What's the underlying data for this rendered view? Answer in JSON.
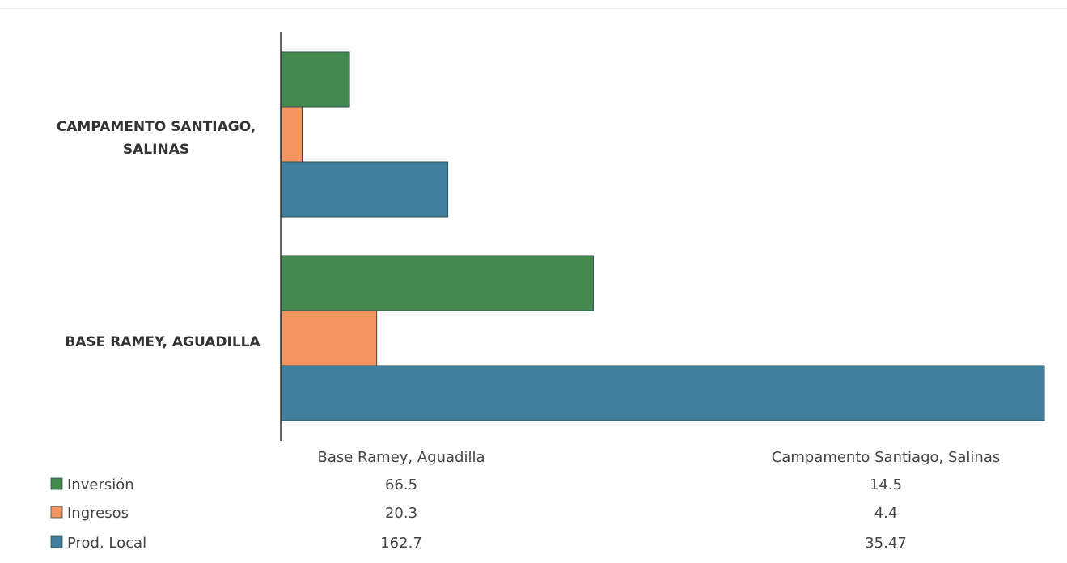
{
  "colors": {
    "inversion": "#44894E",
    "ingresos": "#F49560",
    "prod_local": "#427F9C",
    "bar_stroke": "#2f4f4f"
  },
  "chart_data": {
    "type": "bar",
    "orientation": "horizontal",
    "categories": [
      "Base Ramey, Aguadilla",
      "Campamento Santiago, Salinas"
    ],
    "axis_category_labels": [
      "BASE RAMEY, AGUADILLA",
      "CAMPAMENTO SANTIAGO, SALINAS"
    ],
    "series": [
      {
        "name": "Inversión",
        "values": [
          66.5,
          14.5
        ],
        "color_key": "inversion"
      },
      {
        "name": "Ingresos",
        "values": [
          20.3,
          4.4
        ],
        "color_key": "ingresos"
      },
      {
        "name": "Prod. Local",
        "values": [
          162.7,
          35.47
        ],
        "color_key": "prod_local"
      }
    ],
    "value_text": [
      [
        "66.5",
        "14.5"
      ],
      [
        "20.3",
        "4.4"
      ],
      [
        "162.7",
        "35.47"
      ]
    ],
    "xlim": [
      0,
      162.7
    ],
    "grid": false,
    "legend": "data-table-below",
    "title": "",
    "xlabel": "",
    "ylabel": ""
  }
}
